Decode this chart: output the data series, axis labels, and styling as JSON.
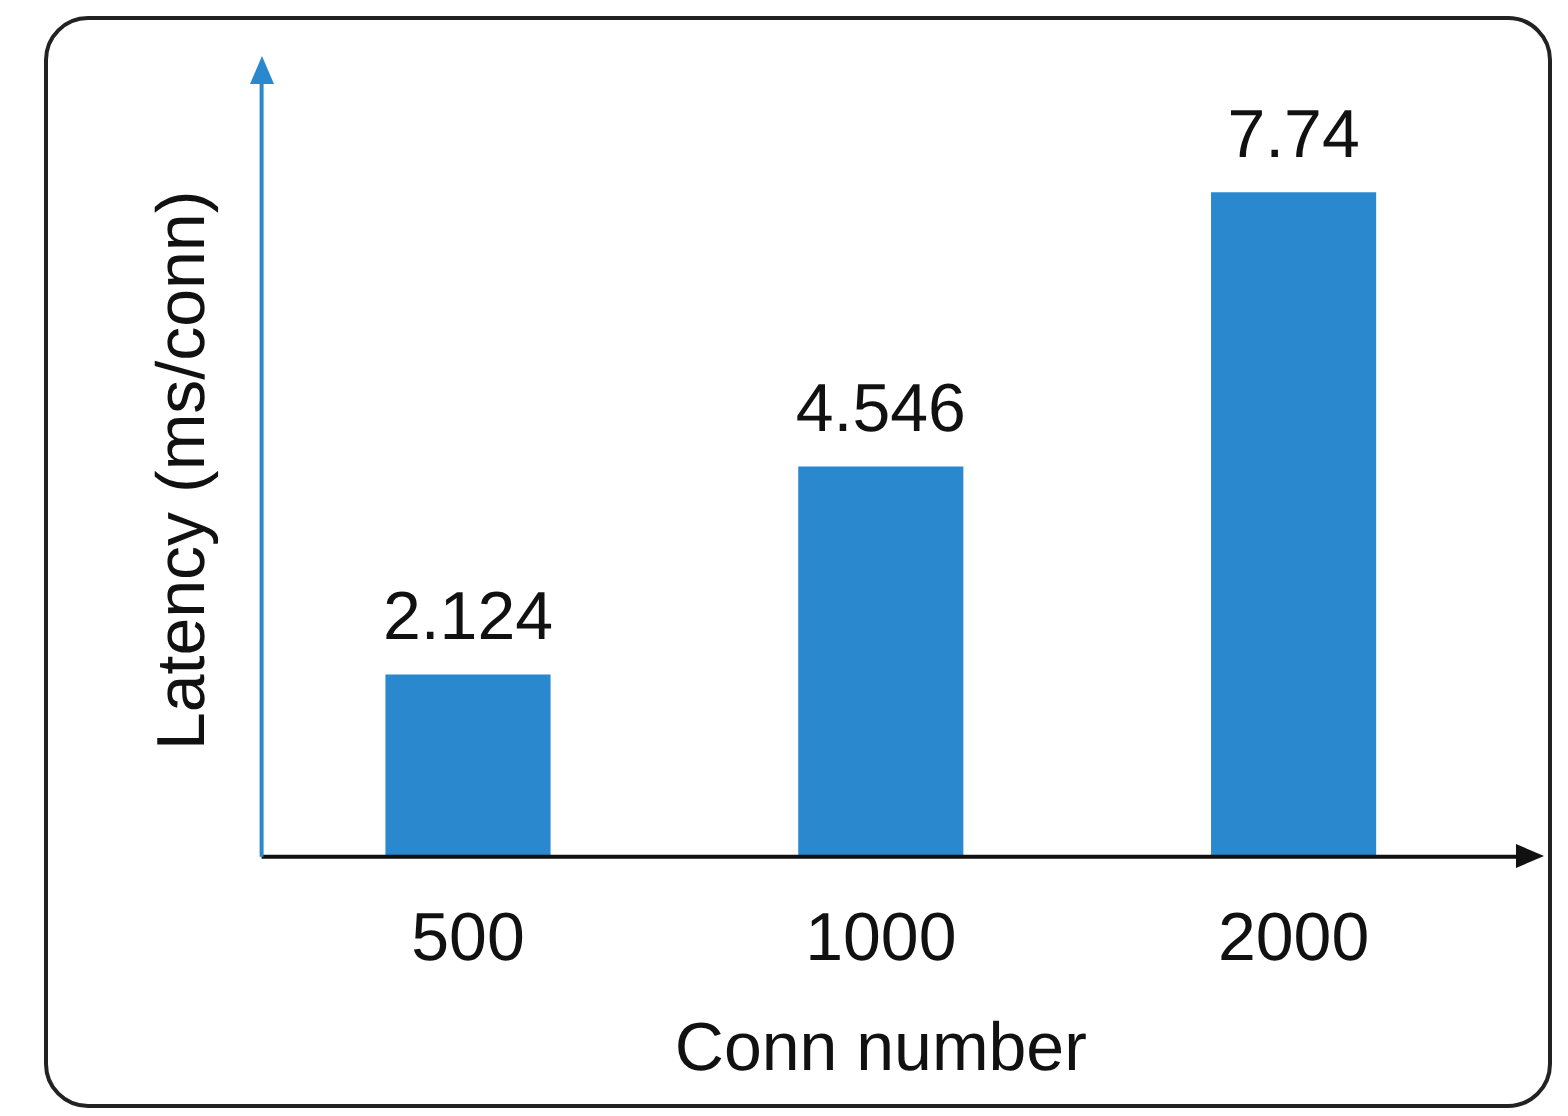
{
  "chart_data": {
    "type": "bar",
    "xlabel": "Conn number",
    "ylabel": "Latency (ms/conn)",
    "categories": [
      "500",
      "1000",
      "2000"
    ],
    "values": [
      2.124,
      4.546,
      7.74
    ],
    "color": "#2a88cf",
    "tick_labels": "x",
    "grid": false,
    "legend": false,
    "data_labels": true
  }
}
